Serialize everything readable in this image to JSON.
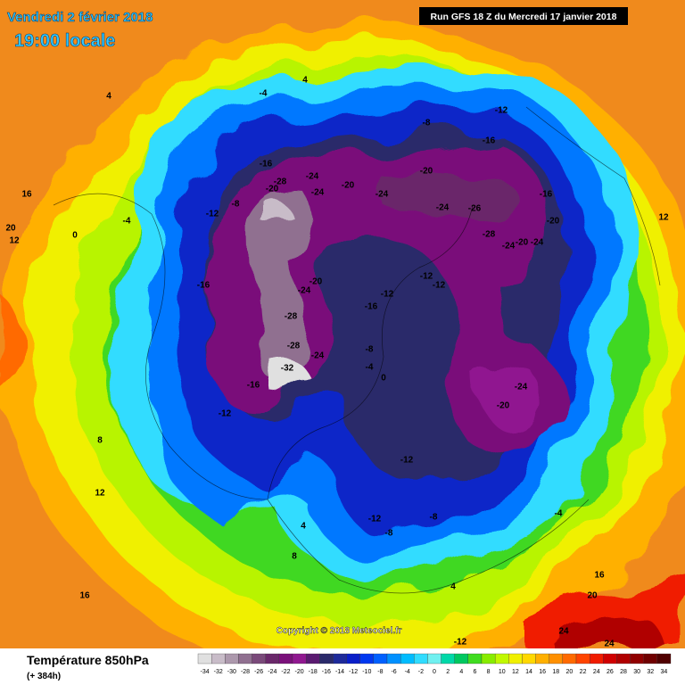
{
  "header": {
    "date": "Vendredi 2 février 2018",
    "time": "19:00 locale",
    "run": "Run GFS 18 Z du Mercredi 17 janvier 2018"
  },
  "copyright": "Copyright © 2018 Meteociel.fr",
  "footer": {
    "title": "Température 850hPa",
    "lead": "(+ 384h)"
  },
  "legend": {
    "values": [
      -34,
      -32,
      -30,
      -28,
      -26,
      -24,
      -22,
      -20,
      -18,
      -16,
      -14,
      -12,
      -10,
      -8,
      -6,
      -4,
      -2,
      0,
      2,
      4,
      6,
      8,
      10,
      12,
      14,
      16,
      18,
      20,
      22,
      24,
      26,
      28,
      30,
      32,
      34
    ],
    "colors": [
      "#e0e0e0",
      "#c8bcc8",
      "#ac98ac",
      "#907090",
      "#7a4a7a",
      "#6a286a",
      "#7a107a",
      "#901890",
      "#5a1a70",
      "#2a2a6a",
      "#1e2a9a",
      "#0a1ec8",
      "#0038f0",
      "#0060ff",
      "#0090ff",
      "#00bcff",
      "#30dcff",
      "#70f0f0",
      "#00d8a8",
      "#00c860",
      "#40dc20",
      "#88ec00",
      "#c0f800",
      "#f0f000",
      "#ffd800",
      "#ffb000",
      "#ff9000",
      "#ff6a00",
      "#ff4400",
      "#f01c00",
      "#d00000",
      "#b00000",
      "#900000",
      "#700000",
      "#500000"
    ]
  },
  "contour_labels": [
    -4,
    4,
    4,
    -8,
    -12,
    -16,
    -16,
    -20,
    -28,
    -24,
    -24,
    -20,
    -24,
    -20,
    -24,
    -26,
    -28,
    -24,
    -20,
    -24,
    -16,
    -20,
    -12,
    -8,
    0,
    -4,
    -16,
    -20,
    -24,
    -12,
    -12,
    -12,
    -16,
    -28,
    -28,
    -24,
    -32,
    -16,
    -12,
    -8,
    -4,
    0,
    -24,
    -20,
    -12,
    -8,
    -12,
    -8,
    -4,
    8,
    12,
    16,
    12,
    16,
    20,
    4,
    8,
    4,
    -12,
    20,
    24,
    24,
    16,
    12
  ]
}
